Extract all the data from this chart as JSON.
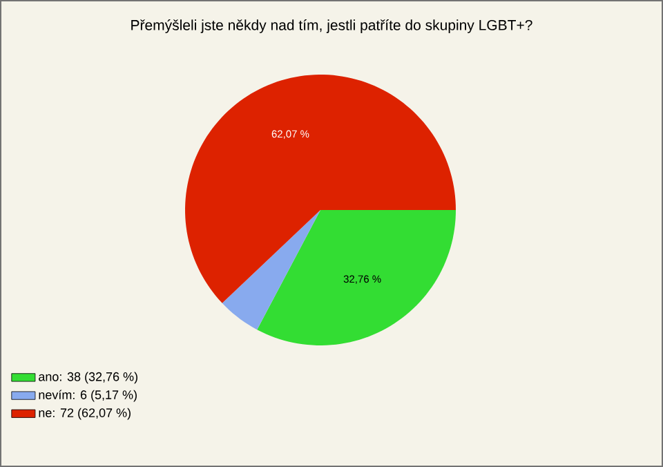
{
  "chart_data": {
    "type": "pie",
    "title": "Přemýšleli jste někdy nad tím, jestli patříte do skupiny LGBT+?",
    "categories": [
      "ano: 38 (32,76 %)",
      "nevím: 6 (5,17 %)",
      "ne: 72 (62,07 %)"
    ],
    "values": [
      32.76,
      5.17,
      62.07
    ],
    "colors": [
      "#33dd33",
      "#88aaee",
      "#dd2200"
    ],
    "value_labels": [
      "32,76 %",
      null,
      "62,07 %"
    ],
    "legend": "bottom left"
  }
}
